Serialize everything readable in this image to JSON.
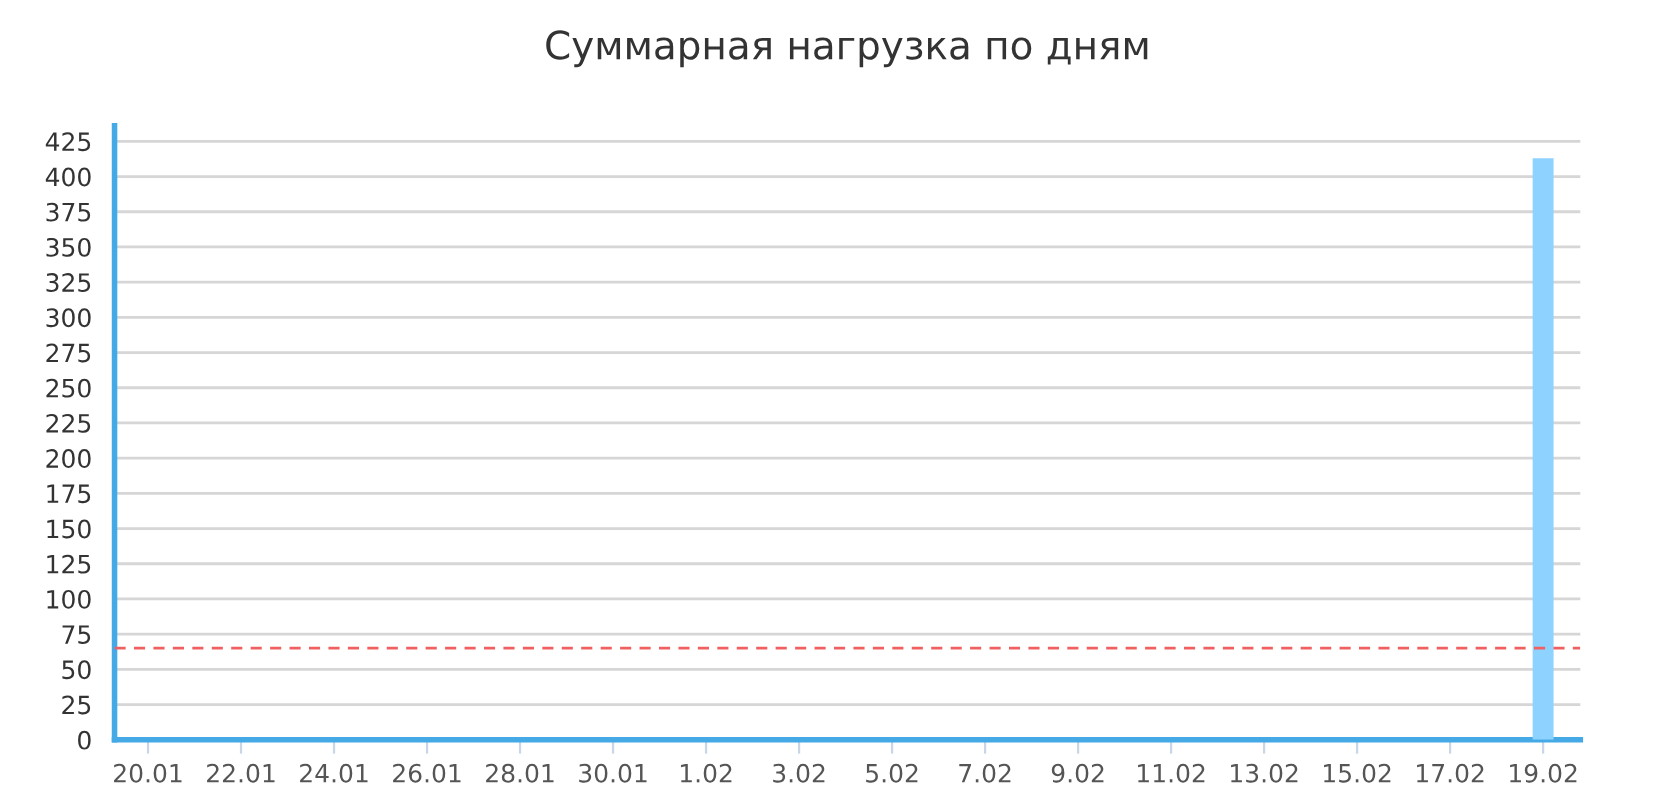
{
  "chart_data": {
    "type": "bar",
    "title": "Суммарная нагрузка по дням",
    "categories": [
      "20.01",
      null,
      "22.01",
      null,
      "24.01",
      null,
      "26.01",
      null,
      "28.01",
      null,
      "30.01",
      null,
      "1.02",
      null,
      "3.02",
      null,
      "5.02",
      null,
      "7.02",
      null,
      "9.02",
      null,
      "11.02",
      null,
      "13.02",
      null,
      "15.02",
      null,
      "17.02",
      null,
      "19.02"
    ],
    "values": [
      0,
      0,
      0,
      0,
      0,
      0,
      0,
      0,
      0,
      0,
      0,
      0,
      0,
      0,
      0,
      0,
      0,
      0,
      0,
      0,
      0,
      0,
      0,
      0,
      0,
      0,
      0,
      0,
      0,
      0,
      413
    ],
    "color": "#8ed2ff",
    "ylim": [
      0,
      436
    ],
    "yticks": [
      0,
      25,
      50,
      75,
      100,
      125,
      150,
      175,
      200,
      225,
      250,
      275,
      300,
      325,
      350,
      375,
      400,
      425
    ],
    "ref_lines": [
      {
        "axis": "y",
        "value": 65,
        "color": "#f06060",
        "line_style": "dashed"
      }
    ],
    "grid": "y",
    "legend": false
  }
}
